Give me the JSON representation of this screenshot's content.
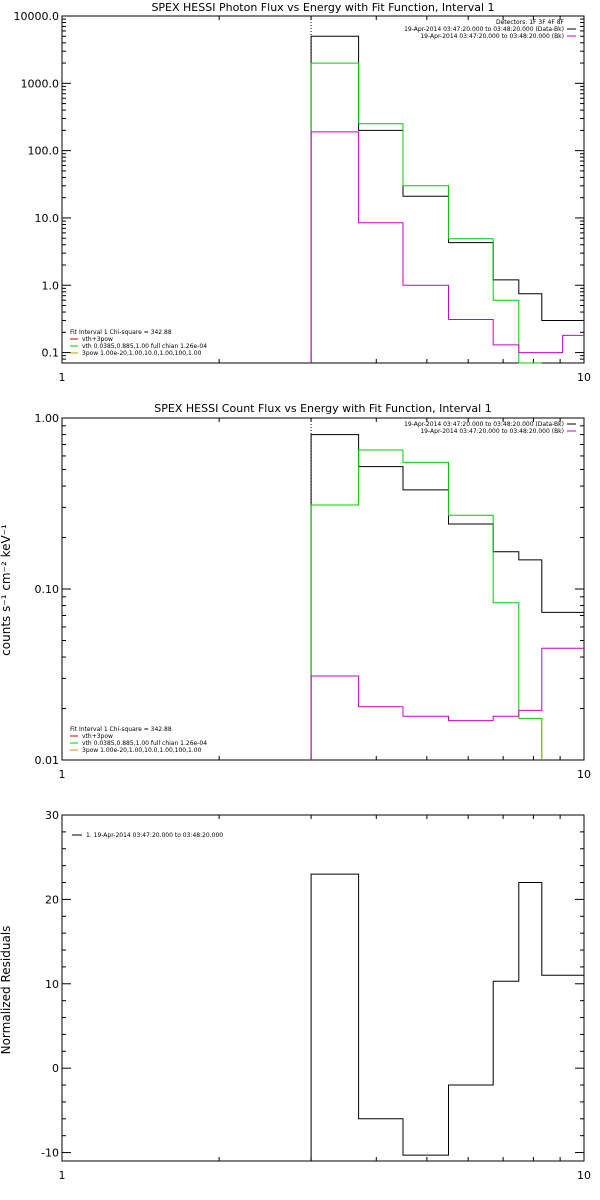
{
  "chart_data": [
    {
      "type": "line",
      "step": true,
      "title": "SPEX HESSI Photon Flux vs Energy with Fit Function, Interval 1",
      "xlabel": "",
      "ylabel": "",
      "xscale": "log",
      "yscale": "log",
      "xlim": [
        1,
        10
      ],
      "ylim": [
        0.07,
        10000
      ],
      "x_ticks": [
        "1",
        "10"
      ],
      "y_ticks": [
        "0.1",
        "1.0",
        "10.0",
        "100.0",
        "1000.0",
        "10000.0"
      ],
      "y_tick_values": [
        0.1,
        1,
        10,
        100,
        1000,
        10000
      ],
      "marker_line_x": 3.0,
      "legend_right": {
        "placement": "top-right",
        "lines": [
          {
            "text": "Detectors: 1F 3F 4F 8F",
            "color": ""
          },
          {
            "text": "19-Apr-2014 03:47:20.000 to 03:48:20.000 (Data-Bk)",
            "color": "#000000"
          },
          {
            "text": "19-Apr-2014 03:47:20.000 to 03:48:20.000 (Bk)",
            "color": "#cc00cc"
          }
        ]
      },
      "legend_left": {
        "placement": "bottom-left",
        "lines": [
          {
            "text": "Fit Interval 1   Chi-square = 342.88",
            "color": ""
          },
          {
            "text": "vth+3pow",
            "color": "#cc0000"
          },
          {
            "text": "vth 0.0385,0.885,1.00  full chian 1.26e-04",
            "color": "#00cc00"
          },
          {
            "text": "3pow 1.00e-20,1.00,10.0,1.00,100,1.00",
            "color": "#cc9900"
          }
        ]
      },
      "series": [
        {
          "name": "Data-Bk",
          "color": "#000000",
          "edges": [
            3.0,
            3.7,
            4.5,
            5.5,
            6.7,
            7.5,
            8.3,
            9.1,
            10
          ],
          "values": [
            5000,
            200,
            21,
            4.3,
            1.2,
            0.75,
            0.3,
            0.3
          ]
        },
        {
          "name": "vth",
          "color": "#00cc00",
          "edges": [
            3.0,
            3.7,
            4.5,
            5.5,
            6.7,
            7.5,
            8.3
          ],
          "values": [
            2000,
            250,
            30,
            4.9,
            0.6,
            0.04
          ]
        },
        {
          "name": "Bk",
          "color": "#cc00cc",
          "edges": [
            3.0,
            3.7,
            4.5,
            5.5,
            6.7,
            7.5,
            8.3,
            9.1,
            10
          ],
          "values": [
            190,
            8.5,
            1.0,
            0.31,
            0.13,
            0.1,
            0.1,
            0.18
          ]
        }
      ]
    },
    {
      "type": "line",
      "step": true,
      "title": "SPEX HESSI Count Flux vs Energy with Fit Function, Interval 1",
      "xlabel": "",
      "ylabel": "counts s⁻¹ cm⁻² keV⁻¹",
      "xscale": "log",
      "yscale": "log",
      "xlim": [
        1,
        10
      ],
      "ylim": [
        0.01,
        1.0
      ],
      "x_ticks": [
        "1",
        "10"
      ],
      "y_ticks": [
        "0.01",
        "0.10",
        "1.00"
      ],
      "y_tick_values": [
        0.01,
        0.1,
        1.0
      ],
      "marker_line_x": 3.0,
      "legend_right": {
        "placement": "top-right",
        "lines": [
          {
            "text": "19-Apr-2014 03:47:20.000 to 03:48:20.000 (Data-Bk)",
            "color": "#000000"
          },
          {
            "text": "19-Apr-2014 03:47:20.000 to 03:48:20.000 (Bk)",
            "color": "#cc00cc"
          }
        ]
      },
      "legend_left": {
        "placement": "bottom-left",
        "lines": [
          {
            "text": "Fit Interval 1   Chi-square = 342.88",
            "color": ""
          },
          {
            "text": "vth+3pow",
            "color": "#cc0000"
          },
          {
            "text": "vth 0.0385,0.885,1.00  full chian 1.26e-04",
            "color": "#00cc00"
          },
          {
            "text": "3pow 1.00e-20,1.00,10.0,1.00,100,1.00",
            "color": "#cc9900"
          }
        ]
      },
      "series": [
        {
          "name": "Data-Bk",
          "color": "#000000",
          "edges": [
            3.0,
            3.7,
            4.5,
            5.5,
            6.7,
            7.5,
            8.3,
            9.1,
            10
          ],
          "values": [
            0.8,
            0.52,
            0.38,
            0.24,
            0.165,
            0.148,
            0.073,
            0.073
          ]
        },
        {
          "name": "vth",
          "color": "#00cc00",
          "edges": [
            3.0,
            3.7,
            4.5,
            5.5,
            6.7,
            7.5,
            8.3
          ],
          "values": [
            0.31,
            0.65,
            0.55,
            0.27,
            0.083,
            0.0175
          ]
        },
        {
          "name": "Bk",
          "color": "#cc00cc",
          "edges": [
            3.0,
            3.7,
            4.5,
            5.5,
            6.7,
            7.5,
            8.3,
            9.1,
            10
          ],
          "values": [
            0.031,
            0.0205,
            0.018,
            0.017,
            0.018,
            0.0195,
            0.045,
            0.045
          ]
        }
      ]
    },
    {
      "type": "line",
      "step": true,
      "title": "",
      "xlabel": "",
      "ylabel": "Normalized Residuals",
      "xscale": "log",
      "yscale": "linear",
      "xlim": [
        1,
        10
      ],
      "ylim": [
        -11,
        30
      ],
      "x_ticks": [
        "1",
        "10"
      ],
      "y_ticks": [
        "-10",
        "0",
        "10",
        "20",
        "30"
      ],
      "y_tick_values": [
        -10,
        0,
        10,
        20,
        30
      ],
      "legend_left": {
        "placement": "top-left",
        "lines": [
          {
            "text": "1. 19-Apr-2014 03:47:20.000 to 03:48:20.000",
            "color": "#000000"
          }
        ]
      },
      "series": [
        {
          "name": "",
          "color": "#000000",
          "edges": [
            3.0,
            3.7,
            4.5,
            5.5,
            6.7,
            7.5,
            8.3,
            9.1,
            10
          ],
          "values": [
            23,
            -6,
            -10.3,
            -2,
            10.3,
            22,
            11,
            11
          ]
        }
      ]
    }
  ]
}
